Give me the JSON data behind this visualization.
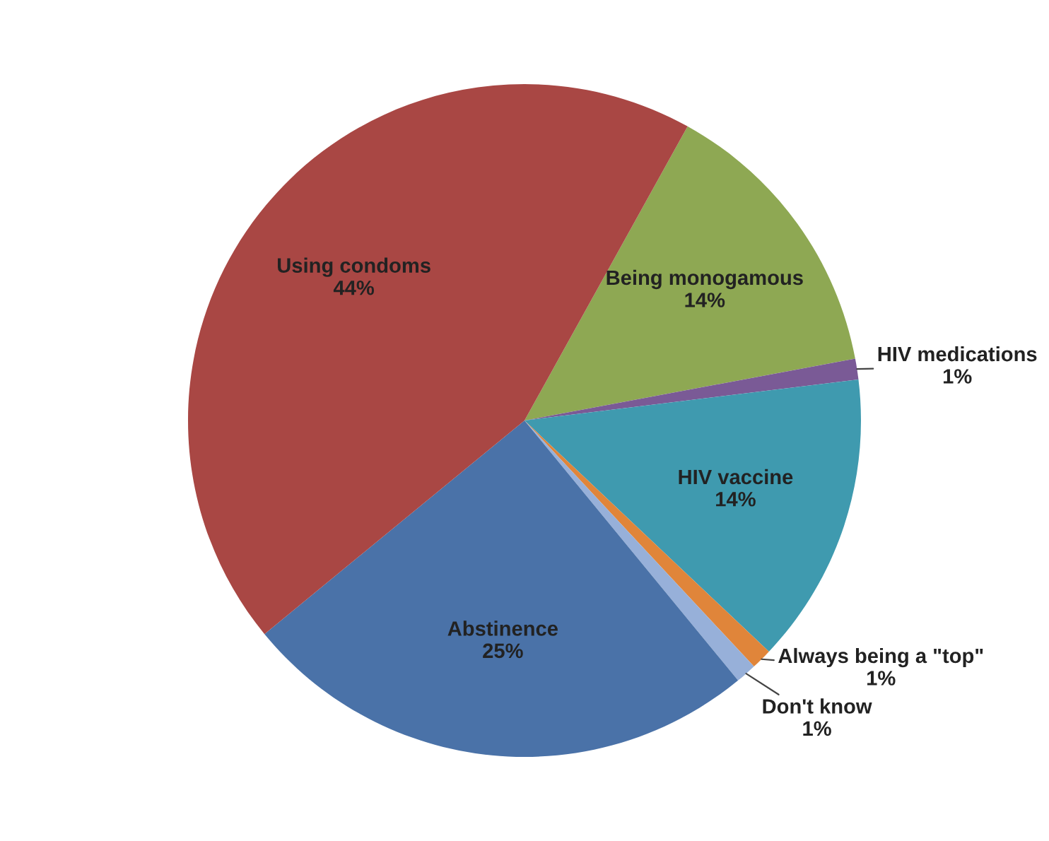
{
  "chart_data": {
    "type": "pie",
    "categories": [
      "Being monogamous",
      "HIV medications",
      "HIV vaccine",
      "Always being a \"top\"",
      "Don't know",
      "Abstinence",
      "Using condoms"
    ],
    "values": [
      14,
      1,
      14,
      1,
      1,
      25,
      44
    ],
    "value_labels": [
      "14%",
      "1%",
      "14%",
      "1%",
      "1%",
      "25%",
      "44%"
    ],
    "colors": [
      "#8ea853",
      "#7a5a96",
      "#3f9aaf",
      "#e0853a",
      "#97b0d9",
      "#4a72a8",
      "#a94744"
    ],
    "legend": false
  }
}
